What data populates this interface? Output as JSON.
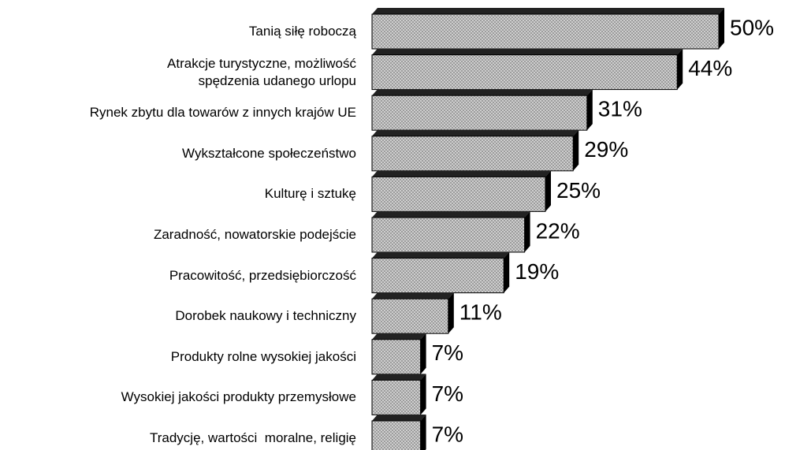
{
  "chart_data": {
    "type": "bar",
    "orientation": "horizontal",
    "categories": [
      "Tanią siłę roboczą",
      "Atrakcje turystyczne, możliwość\nspędzenia udanego urlopu",
      "Rynek zbytu dla towarów z innych krajów UE",
      "Wykształcone społeczeństwo",
      "Kulturę i sztukę",
      "Zaradność, nowatorskie podejście",
      "Pracowitość, przedsiębiorczość",
      "Dorobek naukowy i techniczny",
      "Produkty rolne wysokiej jakości",
      "Wysokiej jakości produkty przemysłowe",
      "Tradycję, wartości  moralne, religię"
    ],
    "values": [
      50,
      44,
      31,
      29,
      25,
      22,
      19,
      11,
      7,
      7,
      7
    ],
    "value_labels": [
      "50%",
      "44%",
      "31%",
      "29%",
      "25%",
      "22%",
      "19%",
      "11%",
      "7%",
      "7%",
      "7%"
    ],
    "color": "#c8c8c8"
  }
}
